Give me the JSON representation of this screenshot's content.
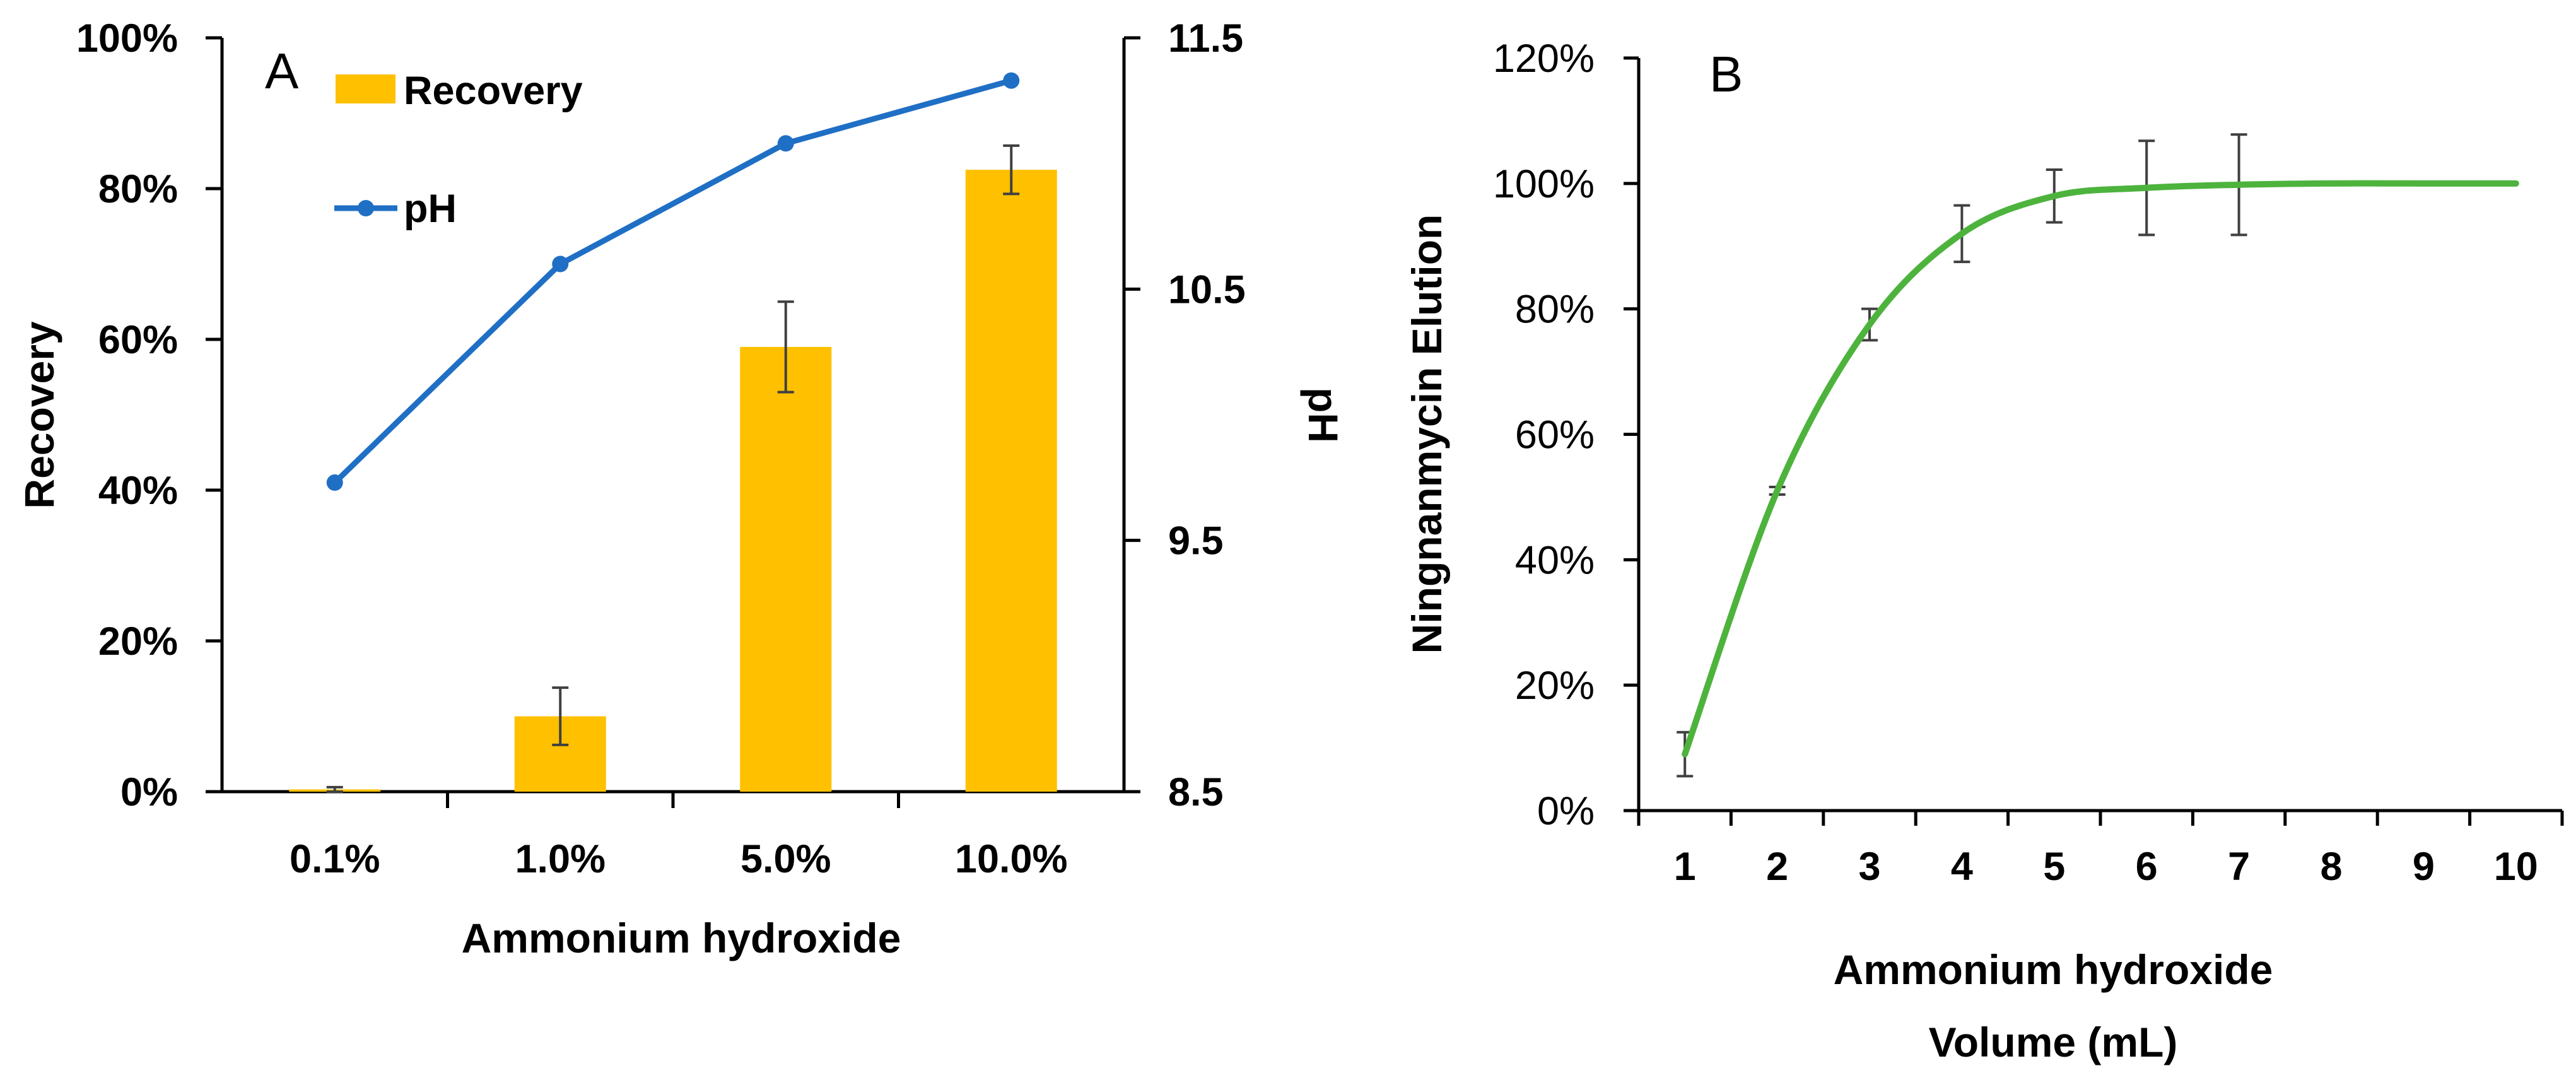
{
  "chart_data": [
    {
      "type": "bar+line",
      "panel_label": "A",
      "categories": [
        "0.1%",
        "1.0%",
        "5.0%",
        "10.0%"
      ],
      "xlabel": "Ammonium hydroxide",
      "ylabel": "Recovery",
      "y2label": "pH",
      "ylim": [
        0,
        100
      ],
      "y_ticks": [
        "0%",
        "20%",
        "40%",
        "60%",
        "80%",
        "100%"
      ],
      "y2lim": [
        8.5,
        11.5
      ],
      "y2_ticks": [
        "8.5",
        "9.5",
        "10.5",
        "11.5"
      ],
      "legend": [
        "Recovery",
        "pH"
      ],
      "series": [
        {
          "name": "Recovery",
          "kind": "bar",
          "axis": "left",
          "color": "#FFC000",
          "values": [
            0.3,
            10,
            59,
            82.5
          ],
          "errors": [
            0.3,
            3.8,
            6,
            3.2
          ]
        },
        {
          "name": "pH",
          "kind": "line",
          "axis": "right",
          "color": "#1F6FC5",
          "values": [
            9.73,
            10.6,
            11.08,
            11.33
          ]
        }
      ]
    },
    {
      "type": "line",
      "panel_label": "B",
      "x": [
        1,
        2,
        3,
        4,
        5,
        6,
        7,
        8,
        9,
        10
      ],
      "x_ticks": [
        "1",
        "2",
        "3",
        "4",
        "5",
        "6",
        "7",
        "8",
        "9",
        "10"
      ],
      "xlabel_lines": [
        "Ammonium hydroxide",
        "Volume (mL)"
      ],
      "ylabel": "Ningnanmycin Elution",
      "ylim": [
        0,
        120
      ],
      "y_ticks": [
        "0%",
        "20%",
        "40%",
        "60%",
        "80%",
        "100%",
        "120%"
      ],
      "series": [
        {
          "name": "Ningnanmycin Elution",
          "color": "#4DB33D",
          "values": [
            9,
            51,
            77.5,
            92,
            98,
            99.3,
            99.8,
            100,
            100,
            100
          ],
          "errors": [
            3.5,
            0.6,
            2.5,
            4.5,
            4.2,
            7.5,
            8,
            null,
            null,
            null
          ]
        }
      ]
    }
  ]
}
